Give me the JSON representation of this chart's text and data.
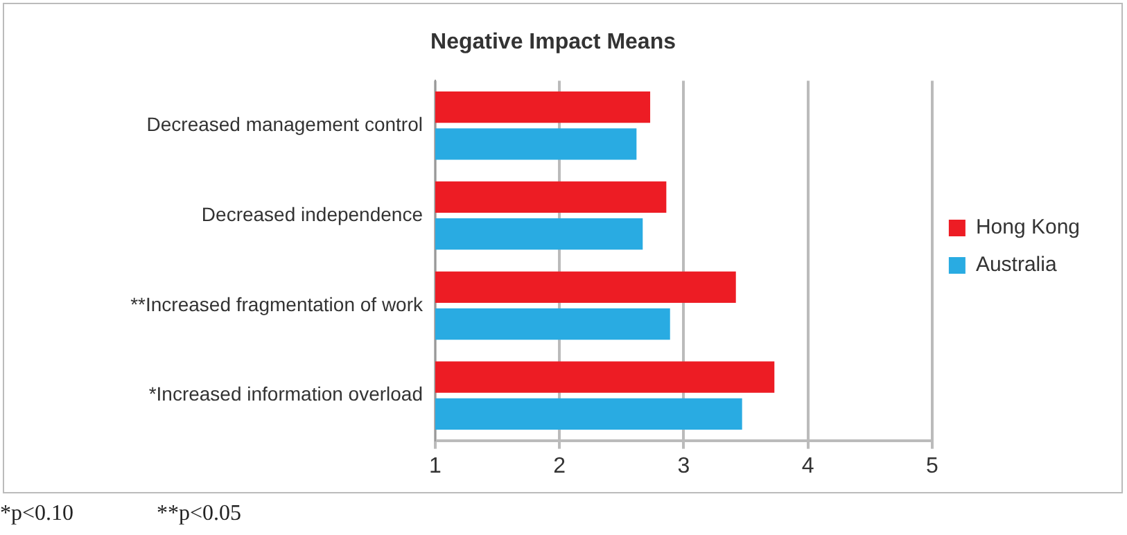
{
  "chart_data": {
    "type": "bar",
    "orientation": "horizontal",
    "title": "Negative Impact Means",
    "categories": [
      "Decreased management control",
      "Decreased independence",
      "**Increased fragmentation of work",
      "*Increased information overload"
    ],
    "series": [
      {
        "name": "Hong Kong",
        "color": "#ed1c24",
        "values": [
          2.73,
          2.86,
          3.42,
          3.73
        ]
      },
      {
        "name": "Australia",
        "color": "#29abe2",
        "values": [
          2.62,
          2.67,
          2.89,
          3.47
        ]
      }
    ],
    "xlim": [
      1,
      5
    ],
    "xticks": [
      1,
      2,
      3,
      4,
      5
    ],
    "grid": "x",
    "legend": "right",
    "annotations": [
      "*p<0.10",
      "**p<0.05"
    ]
  }
}
